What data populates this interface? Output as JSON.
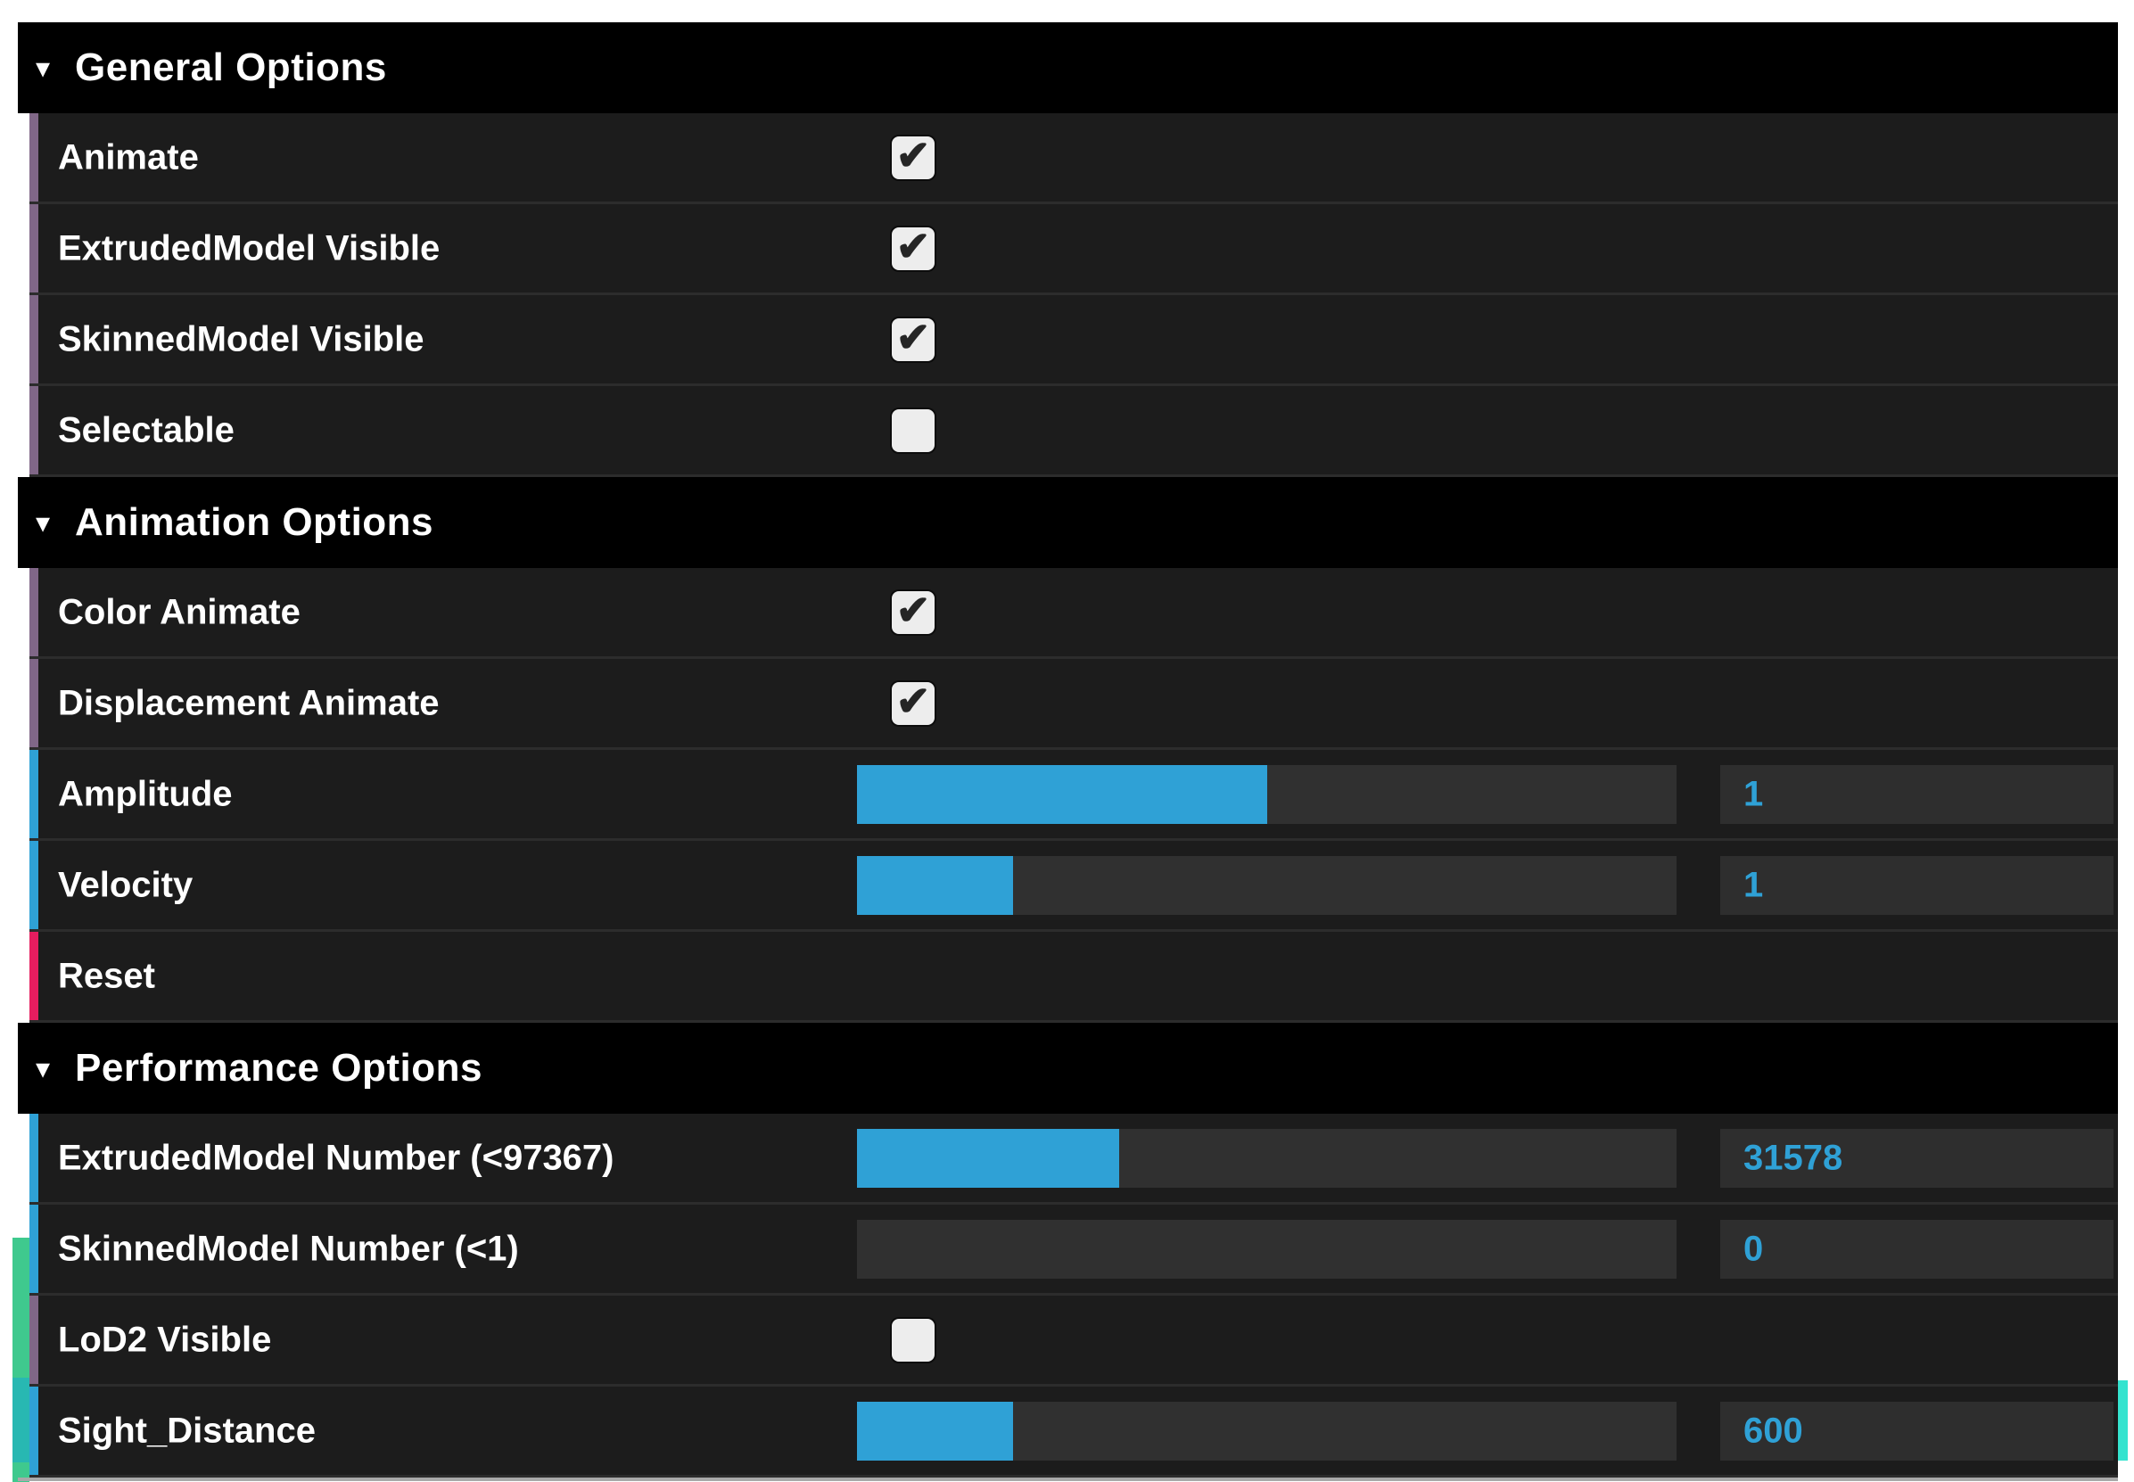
{
  "colors": {
    "boolean_accent": "#806787",
    "number_accent": "#2FA1D6",
    "function_accent": "#e61d5f",
    "slider_fill": "#2FA1D6",
    "slider_track": "#303030",
    "value_text": "#2FA1D6",
    "header_bg": "#000000",
    "row_bg": "#1c1c1c",
    "scene_green": "#3fc98e",
    "scene_teal": "#28b8b2",
    "scene_cyan_sliver": "#35e3cf"
  },
  "panel": {
    "sections": [
      {
        "title": "General Options",
        "collapse_icon": "▾",
        "rows": [
          {
            "label": "Animate",
            "type": "boolean",
            "checked": true,
            "check_glyph": "✔"
          },
          {
            "label": "ExtrudedModel Visible",
            "type": "boolean",
            "checked": true,
            "check_glyph": "✔"
          },
          {
            "label": "SkinnedModel Visible",
            "type": "boolean",
            "checked": true,
            "check_glyph": "✔"
          },
          {
            "label": "Selectable",
            "type": "boolean",
            "checked": false,
            "check_glyph": ""
          }
        ]
      },
      {
        "title": "Animation Options",
        "collapse_icon": "▾",
        "rows": [
          {
            "label": "Color Animate",
            "type": "boolean",
            "checked": true,
            "check_glyph": "✔"
          },
          {
            "label": "Displacement Animate",
            "type": "boolean",
            "checked": true,
            "check_glyph": "✔"
          },
          {
            "label": "Amplitude",
            "type": "number",
            "value": "1",
            "fill_percent": "50%"
          },
          {
            "label": "Velocity",
            "type": "number",
            "value": "1",
            "fill_percent": "19%"
          },
          {
            "label": "Reset",
            "type": "function"
          }
        ]
      },
      {
        "title": "Performance Options",
        "collapse_icon": "▾",
        "rows": [
          {
            "label": "ExtrudedModel Number (<97367)",
            "type": "number",
            "value": "31578",
            "fill_percent": "32%"
          },
          {
            "label": "SkinnedModel Number (<1)",
            "type": "number",
            "value": "0",
            "fill_percent": "0%"
          },
          {
            "label": "LoD2 Visible",
            "type": "boolean",
            "checked": false,
            "check_glyph": ""
          },
          {
            "label": "Sight_Distance",
            "type": "number",
            "value": "600",
            "fill_percent": "19%"
          }
        ]
      }
    ]
  }
}
